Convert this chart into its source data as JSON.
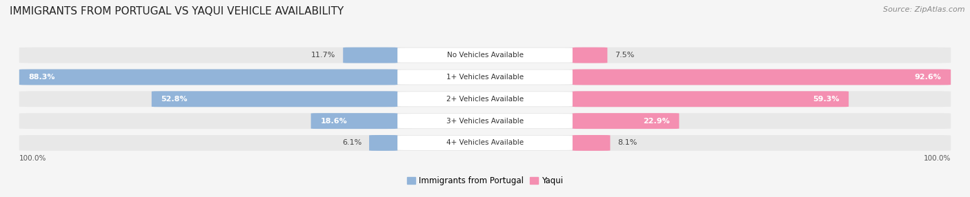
{
  "title": "IMMIGRANTS FROM PORTUGAL VS YAQUI VEHICLE AVAILABILITY",
  "source": "Source: ZipAtlas.com",
  "categories": [
    "No Vehicles Available",
    "1+ Vehicles Available",
    "2+ Vehicles Available",
    "3+ Vehicles Available",
    "4+ Vehicles Available"
  ],
  "portugal_values": [
    11.7,
    88.3,
    52.8,
    18.6,
    6.1
  ],
  "yaqui_values": [
    7.5,
    92.6,
    59.3,
    22.9,
    8.1
  ],
  "portugal_color": "#92b4d9",
  "portugal_color_dark": "#5b8ec4",
  "yaqui_color": "#f48fb1",
  "yaqui_color_dark": "#e91e8c",
  "bg_color": "#f5f5f5",
  "row_bg_color": "#e8e8e8",
  "label_inside_color": "#ffffff",
  "label_outside_color": "#444444",
  "bar_height": 0.72,
  "legend_portugal": "Immigrants from Portugal",
  "legend_yaqui": "Yaqui",
  "title_fontsize": 11,
  "source_fontsize": 8,
  "value_fontsize": 8,
  "cat_fontsize": 7.5
}
